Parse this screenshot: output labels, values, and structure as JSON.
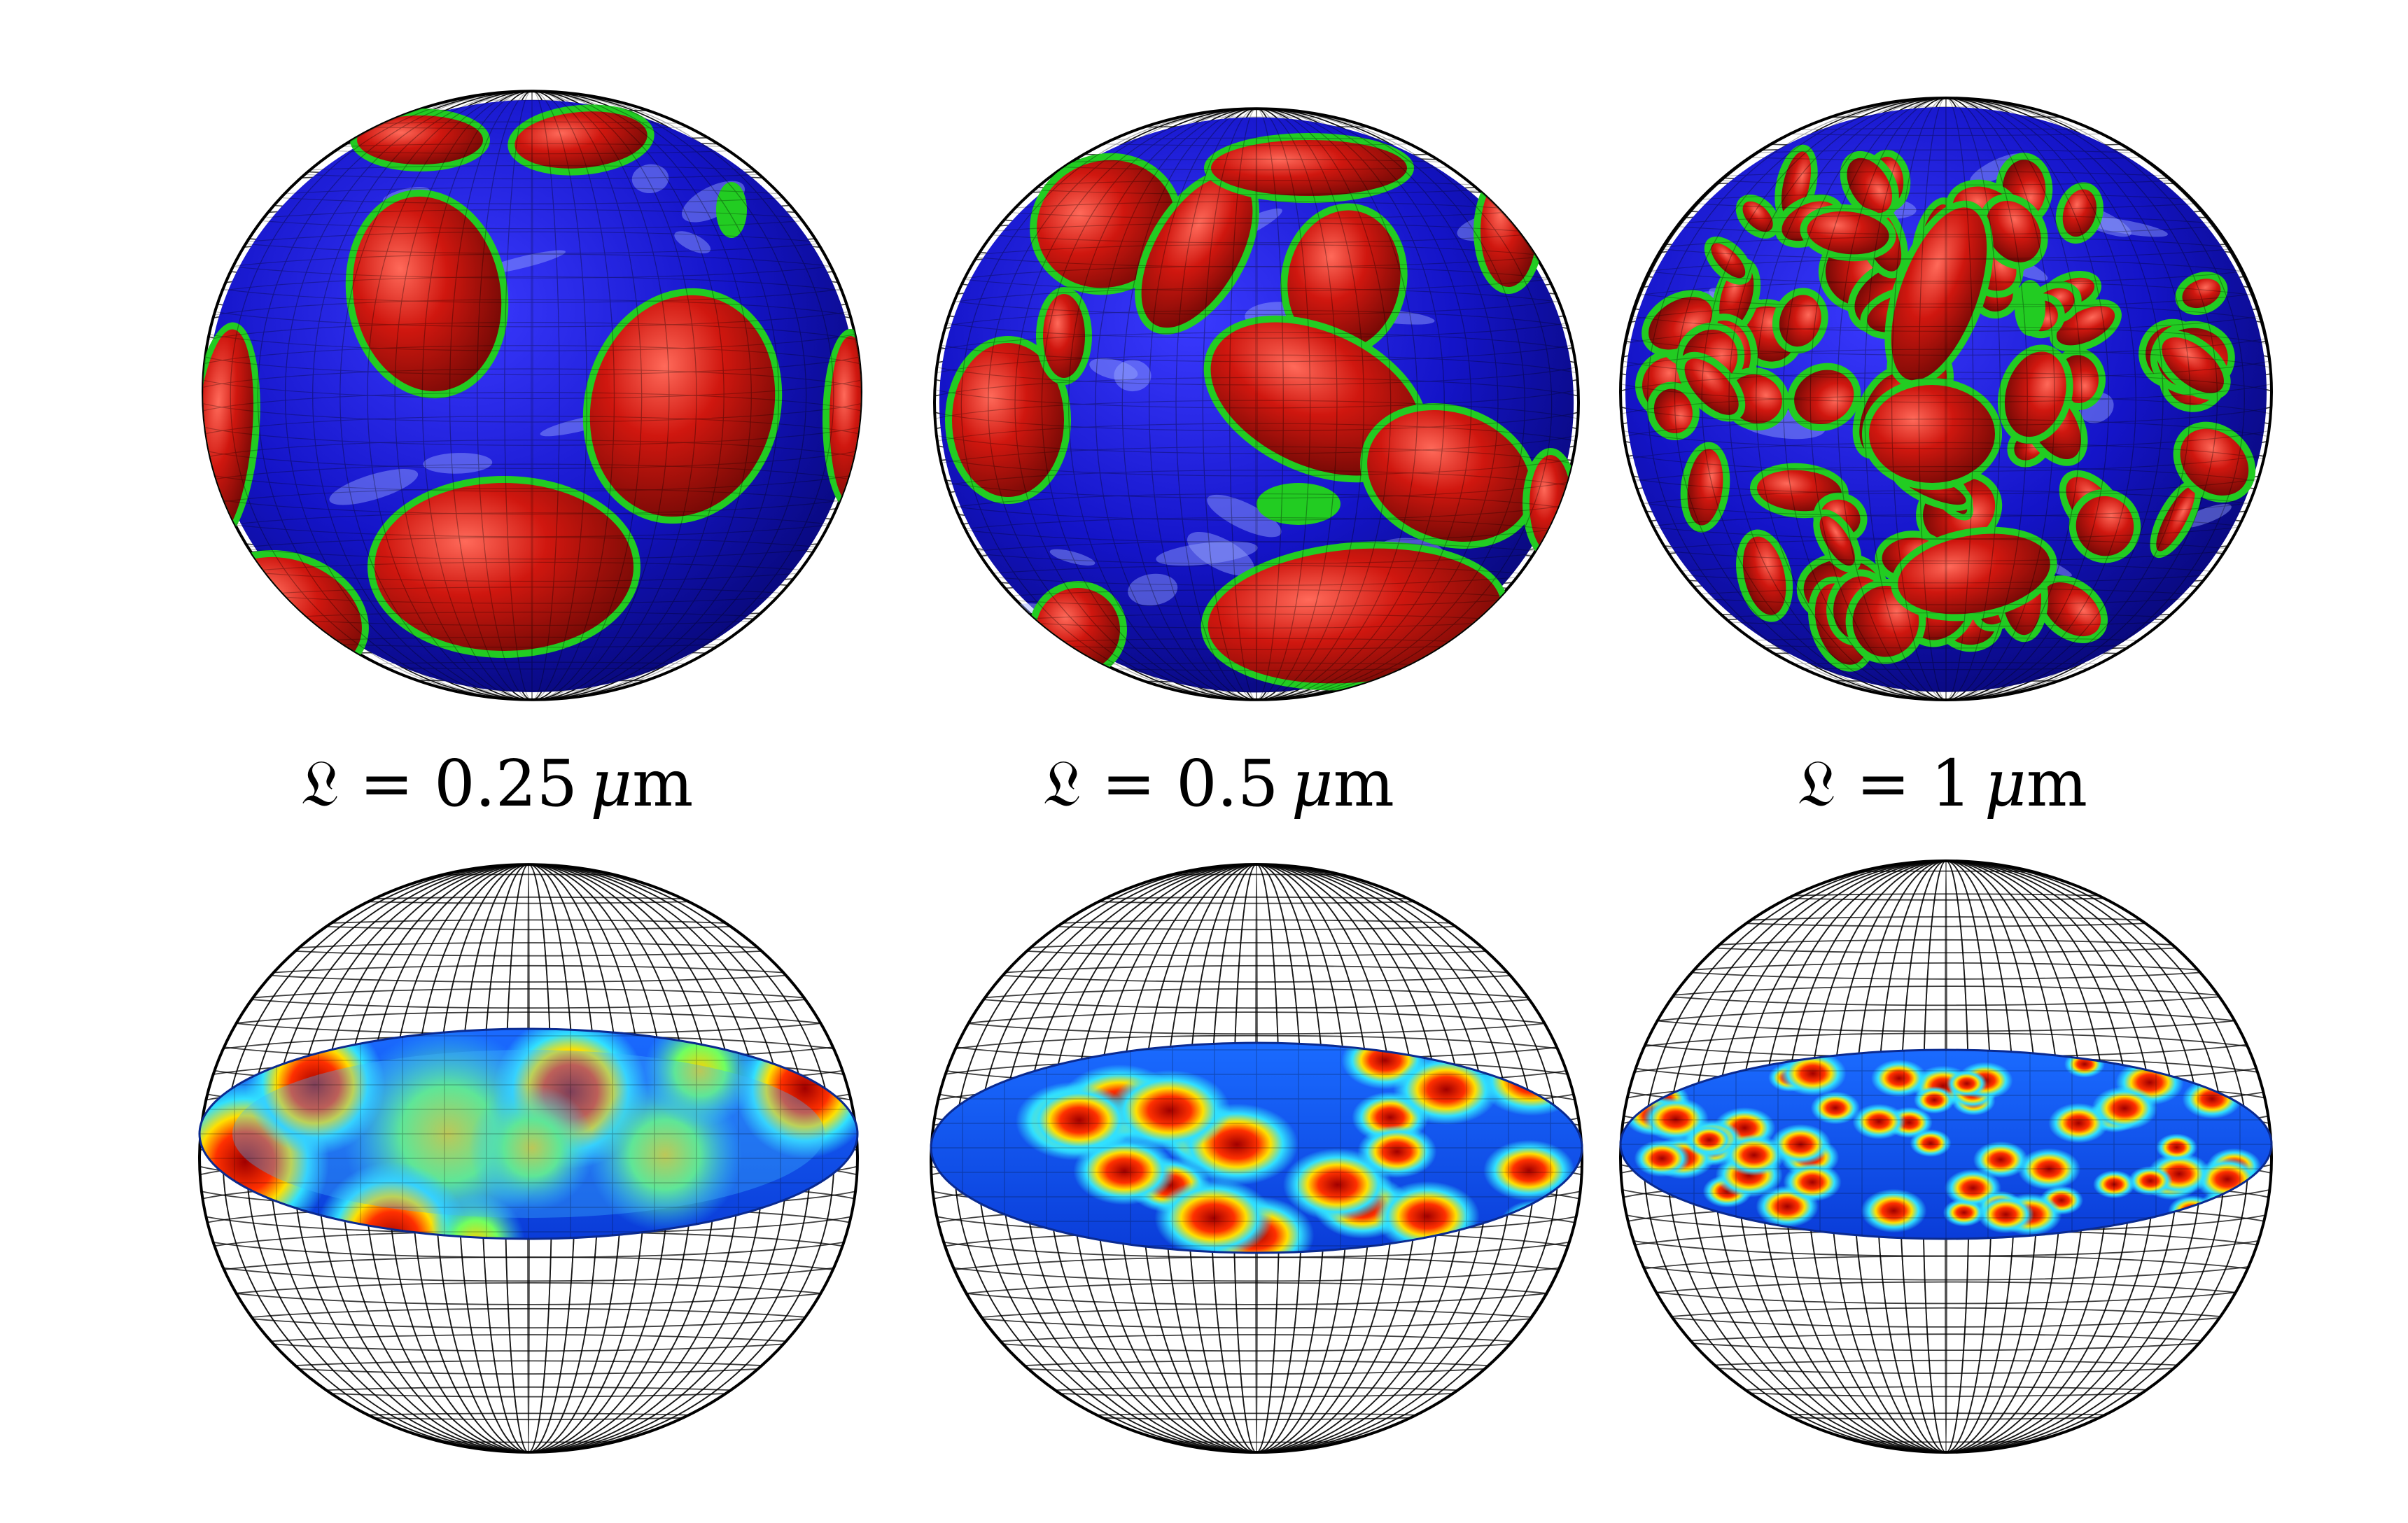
{
  "panels": [
    {
      "label_symbol": "𝔏",
      "label_eq": " = ",
      "label_value": "0.25",
      "label_unit_mu": "μ",
      "label_unit_m": "m"
    },
    {
      "label_symbol": "𝔏",
      "label_eq": " = ",
      "label_value": "0.5",
      "label_unit_mu": "μ",
      "label_unit_m": "m"
    },
    {
      "label_symbol": "𝔏",
      "label_eq": " = ",
      "label_value": "1",
      "label_unit_mu": "μ",
      "label_unit_m": "m"
    }
  ],
  "colors": {
    "background": "#ffffff",
    "surface_blue": "#1414c8",
    "domain_red": "#c8140f",
    "interface_green": "#22cc22",
    "mesh_black": "#000000",
    "slice_low": "#0050ff",
    "slice_mid": "#33d0ff",
    "slice_high": "#b00000"
  }
}
